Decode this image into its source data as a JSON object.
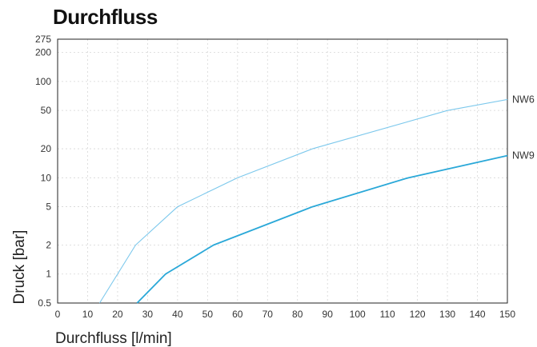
{
  "chart_data": {
    "type": "line",
    "title": "Durchfluss",
    "xlabel": "Durchfluss [l/min]",
    "ylabel": "Druck [bar]",
    "xlim": [
      0,
      150
    ],
    "ylim": [
      0.5,
      275
    ],
    "yscale": "log",
    "grid": true,
    "x_ticks": [
      0,
      10,
      20,
      30,
      40,
      50,
      60,
      70,
      80,
      90,
      100,
      110,
      120,
      130,
      140,
      150
    ],
    "y_ticks": [
      0.5,
      1,
      2,
      5,
      10,
      20,
      50,
      100,
      200,
      275
    ],
    "y_tick_labels": [
      "0.5",
      "1",
      "2",
      "5",
      "10",
      "20",
      "50",
      "100",
      "200",
      "275"
    ],
    "series": [
      {
        "name": "NW6",
        "color": "#7cc8ec",
        "points": [
          [
            14,
            0.5
          ],
          [
            26,
            2
          ],
          [
            40,
            5
          ],
          [
            60,
            10
          ],
          [
            85,
            20
          ],
          [
            130,
            50
          ],
          [
            150,
            65
          ]
        ]
      },
      {
        "name": "NW9",
        "color": "#2aa8d8",
        "points": [
          [
            26.5,
            0.5
          ],
          [
            36,
            1
          ],
          [
            52,
            2
          ],
          [
            85,
            5
          ],
          [
            117,
            10
          ],
          [
            150,
            17
          ]
        ]
      }
    ]
  }
}
